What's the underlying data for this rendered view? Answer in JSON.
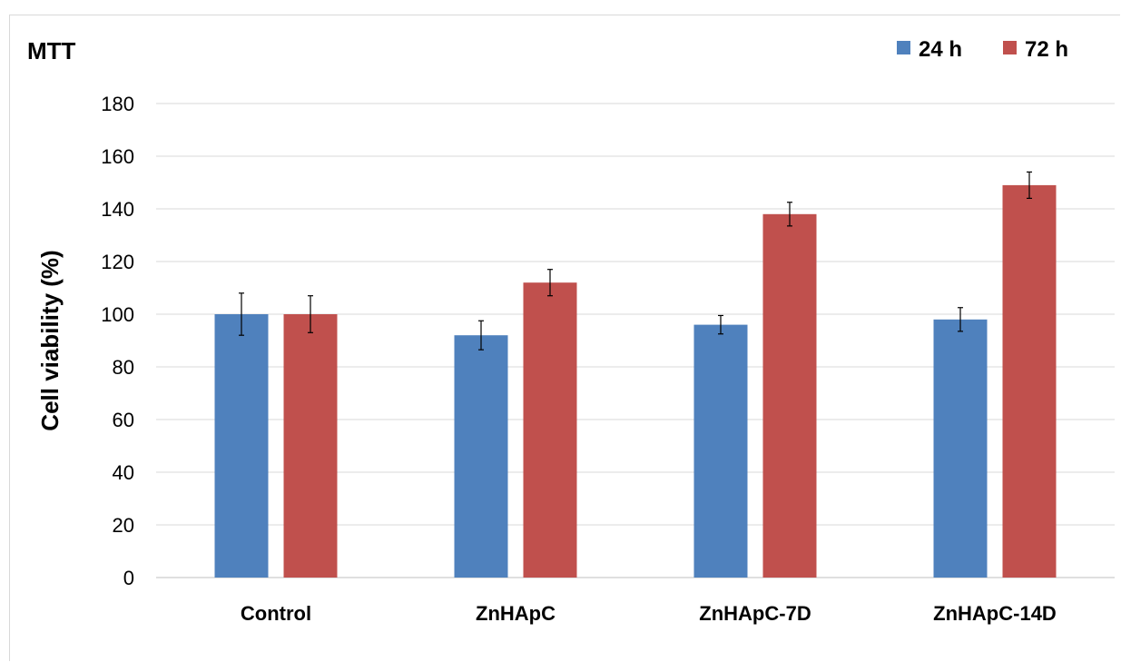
{
  "chart_data": {
    "type": "bar",
    "title": "MTT",
    "ylabel": "Cell viability (%)",
    "xlabel": "",
    "ylim": [
      0,
      180
    ],
    "yticks": [
      0,
      20,
      40,
      60,
      80,
      100,
      120,
      140,
      160,
      180
    ],
    "grid": true,
    "legend_position": "top-right",
    "categories": [
      "Control",
      "ZnHApC",
      "ZnHApC-7D",
      "ZnHApC-14D"
    ],
    "series": [
      {
        "name": "24 h",
        "color": "#4f81bd",
        "values": [
          100,
          92,
          96,
          98
        ],
        "errors": [
          8,
          5.5,
          3.5,
          4.5
        ]
      },
      {
        "name": "72 h",
        "color": "#c0504d",
        "values": [
          100,
          112,
          138,
          149
        ],
        "errors": [
          7,
          5,
          4.5,
          5
        ]
      }
    ]
  }
}
